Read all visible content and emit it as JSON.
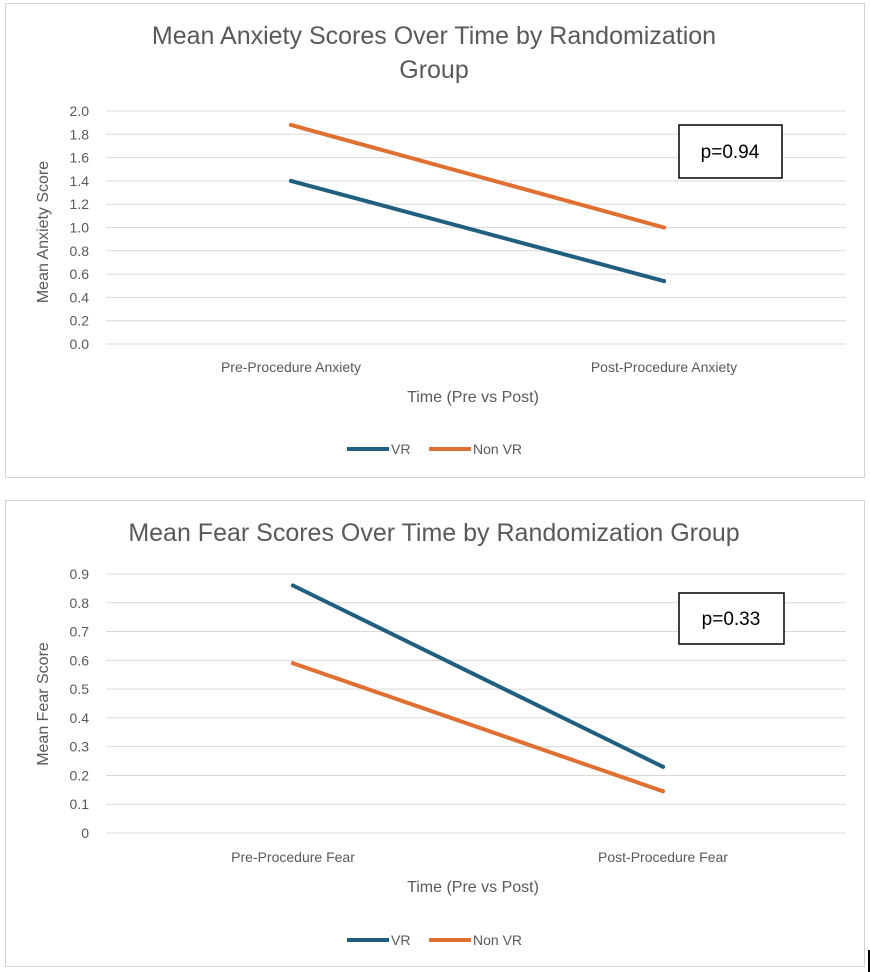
{
  "charts": [
    {
      "chart_data": {
        "type": "line",
        "title_lines": [
          "Mean Anxiety Scores Over Time by Randomization",
          "Group"
        ],
        "xlabel": "Time (Pre vs Post)",
        "ylabel": "Mean Anxiety Score",
        "categories": [
          "Pre-Procedure Anxiety",
          "Post-Procedure Anxiety"
        ],
        "ylim": [
          0,
          2.0
        ],
        "yticks": [
          0.0,
          0.2,
          0.4,
          0.6,
          0.8,
          1.0,
          1.2,
          1.4,
          1.6,
          1.8,
          2.0
        ],
        "ytick_labels": [
          "0.0",
          "0.2",
          "0.4",
          "0.6",
          "0.8",
          "1.0",
          "1.2",
          "1.4",
          "1.6",
          "1.8",
          "2.0"
        ],
        "grid": true,
        "legend_position": "bottom",
        "series": [
          {
            "name": "VR",
            "values": [
              1.4,
              0.54
            ],
            "color": "#205f80"
          },
          {
            "name": "Non VR",
            "values": [
              1.88,
              1.0
            ],
            "color": "#e06f32"
          }
        ],
        "annotation": "p=0.94"
      }
    },
    {
      "chart_data": {
        "type": "line",
        "title_lines": [
          "Mean Fear Scores Over Time by Randomization Group"
        ],
        "xlabel": "Time (Pre vs Post)",
        "ylabel": "Mean Fear Score",
        "categories": [
          "Pre-Procedure Fear",
          "Post-Procedure Fear"
        ],
        "ylim": [
          0,
          0.9
        ],
        "yticks": [
          0,
          0.1,
          0.2,
          0.3,
          0.4,
          0.5,
          0.6,
          0.7,
          0.8,
          0.9
        ],
        "ytick_labels": [
          "0",
          "0.1",
          "0.2",
          "0.3",
          "0.4",
          "0.5",
          "0.6",
          "0.7",
          "0.8",
          "0.9"
        ],
        "grid": true,
        "legend_position": "bottom",
        "series": [
          {
            "name": "VR",
            "values": [
              0.86,
              0.23
            ],
            "color": "#205f80"
          },
          {
            "name": "Non VR",
            "values": [
              0.59,
              0.145
            ],
            "color": "#e06f32"
          }
        ],
        "annotation": "p=0.33"
      }
    }
  ]
}
